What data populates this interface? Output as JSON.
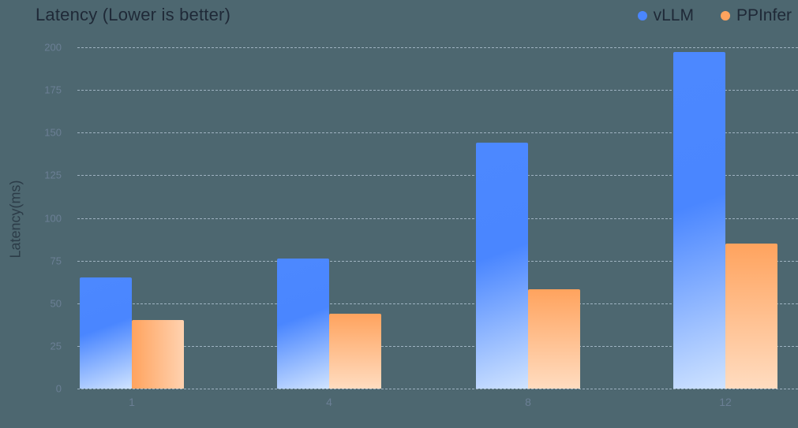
{
  "title": "Latency (Lower is better)",
  "legend": [
    {
      "name": "vLLM",
      "color": "#4a86ff"
    },
    {
      "name": "PPInfer",
      "color": "#ffa35e"
    }
  ],
  "y_axis": {
    "label": "Latency(ms)",
    "ticks": [
      "0",
      "25",
      "50",
      "75",
      "100",
      "125",
      "150",
      "175",
      "200"
    ]
  },
  "x_axis": {
    "ticks": [
      "1",
      "4",
      "8",
      "12"
    ]
  },
  "chart_data": {
    "type": "bar",
    "title": "Latency (Lower is better)",
    "xlabel": "",
    "ylabel": "Latency(ms)",
    "categories": [
      "1",
      "4",
      "8",
      "12"
    ],
    "series": [
      {
        "name": "vLLM",
        "color": "#4a86ff",
        "values": [
          65,
          76,
          144,
          197
        ]
      },
      {
        "name": "PPInfer",
        "color": "#ffa35e",
        "values": [
          40,
          44,
          58,
          85
        ]
      }
    ],
    "ylim": [
      0,
      200
    ],
    "yticks": [
      0,
      25,
      50,
      75,
      100,
      125,
      150,
      175,
      200
    ],
    "grid": true,
    "legend_position": "top-right"
  }
}
